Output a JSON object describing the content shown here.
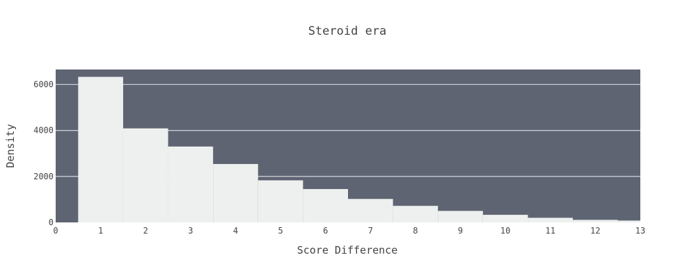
{
  "chart_data": {
    "type": "bar",
    "title": "Steroid era",
    "xlabel": "Score Difference",
    "ylabel": "Density",
    "x": [
      1,
      2,
      3,
      4,
      5,
      6,
      7,
      8,
      9,
      10,
      11,
      12,
      13
    ],
    "values": [
      6330,
      4090,
      3300,
      2540,
      1830,
      1450,
      1020,
      720,
      500,
      330,
      200,
      110,
      80
    ],
    "bar_width": 1,
    "xlim": [
      0,
      13
    ],
    "ylim": [
      0,
      6650
    ],
    "xticks": [
      0,
      1,
      2,
      3,
      4,
      5,
      6,
      7,
      8,
      9,
      10,
      11,
      12,
      13
    ],
    "yticks": [
      0,
      2000,
      4000,
      6000
    ],
    "grid": true,
    "colors": {
      "plot_background": "#5e6472",
      "bar_fill": "#eef0ef",
      "gridline": "#c9ccd3",
      "text": "#444444"
    }
  }
}
